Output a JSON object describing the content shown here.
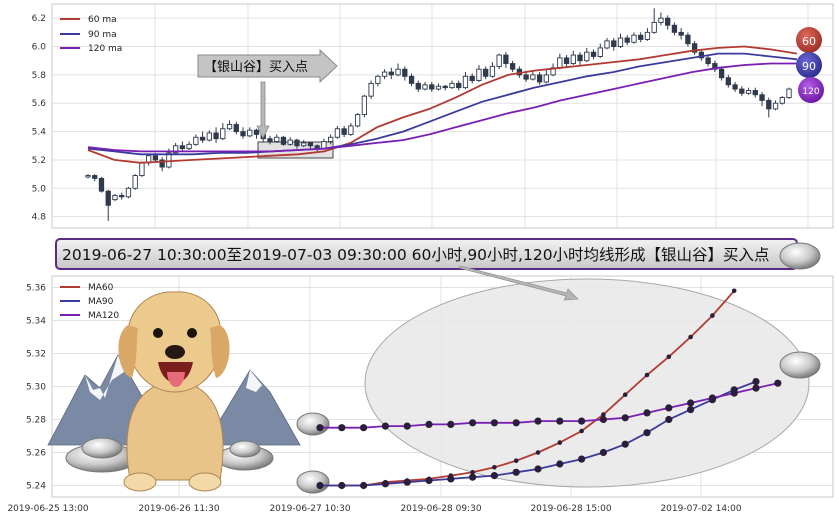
{
  "colors": {
    "ma60": "#b23a32",
    "ma90": "#3b3b9e",
    "ma120": "#7a1fb3",
    "candle": "#2f3a4c",
    "frame": "#c8c8c8",
    "grid": "#e1e1e1",
    "ellipse": "#e8e8e8"
  },
  "banner_text": "2019-06-27 10:30:00至2019-07-03 09:30:00 60小时,90小时,120小时均线形成【银山谷】买入点",
  "annotation_text": "【银山谷】买入点",
  "badges": [
    "60",
    "90",
    "120"
  ],
  "chart_data": [
    {
      "type": "candlestick",
      "title": "",
      "ylim": [
        4.72,
        6.3
      ],
      "yticks": [
        "4.8",
        "5.0",
        "5.2",
        "5.4",
        "5.6",
        "5.8",
        "6.0",
        "6.2"
      ],
      "legend": [
        "60 ma",
        "90 ma",
        "120 ma"
      ],
      "legend_position": "top-left",
      "grid": true,
      "candles": [
        [
          5.08,
          5.09,
          5.1,
          5.07
        ],
        [
          5.09,
          5.07,
          5.1,
          5.05
        ],
        [
          5.07,
          4.98,
          5.08,
          4.97
        ],
        [
          4.98,
          4.88,
          4.99,
          4.77
        ],
        [
          4.92,
          4.95,
          4.96,
          4.91
        ],
        [
          4.95,
          4.94,
          4.97,
          4.92
        ],
        [
          4.94,
          5.0,
          5.01,
          4.93
        ],
        [
          5.0,
          5.09,
          5.1,
          4.99
        ],
        [
          5.09,
          5.18,
          5.19,
          5.08
        ],
        [
          5.18,
          5.23,
          5.24,
          5.16
        ],
        [
          5.23,
          5.2,
          5.25,
          5.18
        ],
        [
          5.2,
          5.15,
          5.22,
          5.12
        ],
        [
          5.15,
          5.25,
          5.28,
          5.14
        ],
        [
          5.25,
          5.3,
          5.32,
          5.24
        ],
        [
          5.3,
          5.28,
          5.33,
          5.26
        ],
        [
          5.28,
          5.31,
          5.33,
          5.27
        ],
        [
          5.31,
          5.36,
          5.38,
          5.3
        ],
        [
          5.36,
          5.34,
          5.4,
          5.32
        ],
        [
          5.34,
          5.39,
          5.41,
          5.33
        ],
        [
          5.39,
          5.35,
          5.43,
          5.32
        ],
        [
          5.35,
          5.42,
          5.46,
          5.34
        ],
        [
          5.42,
          5.45,
          5.48,
          5.41
        ],
        [
          5.45,
          5.4,
          5.47,
          5.38
        ],
        [
          5.4,
          5.37,
          5.43,
          5.35
        ],
        [
          5.37,
          5.41,
          5.43,
          5.36
        ],
        [
          5.41,
          5.38,
          5.42,
          5.35
        ],
        [
          5.38,
          5.35,
          5.4,
          5.33
        ],
        [
          5.35,
          5.33,
          5.37,
          5.31
        ],
        [
          5.33,
          5.36,
          5.38,
          5.32
        ],
        [
          5.36,
          5.31,
          5.37,
          5.3
        ],
        [
          5.31,
          5.34,
          5.36,
          5.3
        ],
        [
          5.34,
          5.3,
          5.35,
          5.28
        ],
        [
          5.3,
          5.32,
          5.34,
          5.29
        ],
        [
          5.32,
          5.3,
          5.33,
          5.28
        ],
        [
          5.3,
          5.28,
          5.31,
          5.25
        ],
        [
          5.28,
          5.33,
          5.35,
          5.27
        ],
        [
          5.33,
          5.36,
          5.38,
          5.31
        ],
        [
          5.36,
          5.42,
          5.44,
          5.35
        ],
        [
          5.42,
          5.38,
          5.44,
          5.36
        ],
        [
          5.38,
          5.44,
          5.46,
          5.37
        ],
        [
          5.44,
          5.52,
          5.53,
          5.43
        ],
        [
          5.52,
          5.65,
          5.66,
          5.5
        ],
        [
          5.65,
          5.74,
          5.76,
          5.63
        ],
        [
          5.74,
          5.79,
          5.8,
          5.72
        ],
        [
          5.79,
          5.82,
          5.84,
          5.77
        ],
        [
          5.82,
          5.8,
          5.85,
          5.77
        ],
        [
          5.8,
          5.84,
          5.88,
          5.79
        ],
        [
          5.84,
          5.79,
          5.86,
          5.76
        ],
        [
          5.79,
          5.74,
          5.81,
          5.72
        ],
        [
          5.74,
          5.7,
          5.76,
          5.68
        ],
        [
          5.7,
          5.73,
          5.75,
          5.69
        ],
        [
          5.73,
          5.7,
          5.75,
          5.68
        ],
        [
          5.7,
          5.72,
          5.74,
          5.69
        ],
        [
          5.72,
          5.71,
          5.73,
          5.69
        ],
        [
          5.71,
          5.74,
          5.76,
          5.7
        ],
        [
          5.74,
          5.71,
          5.76,
          5.69
        ],
        [
          5.71,
          5.79,
          5.82,
          5.7
        ],
        [
          5.79,
          5.76,
          5.81,
          5.74
        ],
        [
          5.76,
          5.84,
          5.87,
          5.75
        ],
        [
          5.84,
          5.79,
          5.86,
          5.77
        ],
        [
          5.79,
          5.86,
          5.89,
          5.78
        ],
        [
          5.86,
          5.94,
          5.95,
          5.84
        ],
        [
          5.94,
          5.88,
          5.96,
          5.85
        ],
        [
          5.88,
          5.84,
          5.9,
          5.82
        ],
        [
          5.84,
          5.8,
          5.86,
          5.78
        ],
        [
          5.8,
          5.77,
          5.83,
          5.75
        ],
        [
          5.77,
          5.8,
          5.83,
          5.76
        ],
        [
          5.8,
          5.75,
          5.82,
          5.73
        ],
        [
          5.75,
          5.8,
          5.84,
          5.74
        ],
        [
          5.8,
          5.85,
          5.88,
          5.79
        ],
        [
          5.85,
          5.92,
          5.95,
          5.84
        ],
        [
          5.92,
          5.88,
          5.94,
          5.86
        ],
        [
          5.88,
          5.94,
          5.97,
          5.87
        ],
        [
          5.94,
          5.9,
          5.96,
          5.87
        ],
        [
          5.9,
          5.96,
          5.99,
          5.89
        ],
        [
          5.96,
          5.93,
          5.98,
          5.91
        ],
        [
          5.93,
          5.99,
          6.02,
          5.92
        ],
        [
          5.99,
          6.04,
          6.06,
          5.98
        ],
        [
          6.04,
          6.0,
          6.06,
          5.97
        ],
        [
          6.0,
          6.06,
          6.09,
          5.99
        ],
        [
          6.06,
          6.03,
          6.08,
          6.01
        ],
        [
          6.03,
          6.08,
          6.1,
          6.02
        ],
        [
          6.08,
          6.05,
          6.1,
          6.03
        ],
        [
          6.05,
          6.1,
          6.13,
          6.04
        ],
        [
          6.1,
          6.17,
          6.27,
          6.09
        ],
        [
          6.17,
          6.2,
          6.24,
          6.15
        ],
        [
          6.2,
          6.15,
          6.22,
          6.12
        ],
        [
          6.15,
          6.1,
          6.17,
          6.08
        ],
        [
          6.1,
          6.08,
          6.13,
          6.05
        ],
        [
          6.08,
          6.02,
          6.1,
          6.0
        ],
        [
          6.02,
          5.96,
          6.04,
          5.94
        ],
        [
          5.96,
          5.92,
          5.98,
          5.9
        ],
        [
          5.92,
          5.88,
          5.94,
          5.86
        ],
        [
          5.88,
          5.84,
          5.9,
          5.82
        ],
        [
          5.84,
          5.78,
          5.86,
          5.76
        ],
        [
          5.78,
          5.73,
          5.8,
          5.71
        ],
        [
          5.73,
          5.7,
          5.75,
          5.68
        ],
        [
          5.7,
          5.67,
          5.72,
          5.65
        ],
        [
          5.67,
          5.69,
          5.71,
          5.66
        ],
        [
          5.69,
          5.66,
          5.71,
          5.64
        ],
        [
          5.66,
          5.62,
          5.68,
          5.58
        ],
        [
          5.62,
          5.56,
          5.64,
          5.5
        ],
        [
          5.56,
          5.6,
          5.62,
          5.55
        ],
        [
          5.6,
          5.64,
          5.65,
          5.59
        ],
        [
          5.64,
          5.7,
          5.71,
          5.63
        ]
      ],
      "series": [
        {
          "name": "60 ma",
          "values": [
            5.27,
            5.2,
            5.18,
            5.19,
            5.2,
            5.21,
            5.22,
            5.23,
            5.24,
            5.26,
            5.32,
            5.43,
            5.5,
            5.56,
            5.64,
            5.73,
            5.8,
            5.83,
            5.85,
            5.87,
            5.89,
            5.91,
            5.94,
            5.97,
            5.99,
            6.0,
            5.98,
            5.95
          ]
        },
        {
          "name": "90 ma",
          "values": [
            5.28,
            5.26,
            5.24,
            5.24,
            5.24,
            5.25,
            5.25,
            5.26,
            5.27,
            5.28,
            5.31,
            5.35,
            5.4,
            5.47,
            5.54,
            5.61,
            5.66,
            5.71,
            5.75,
            5.79,
            5.82,
            5.86,
            5.89,
            5.92,
            5.95,
            5.95,
            5.93,
            5.91
          ]
        },
        {
          "name": "120 ma",
          "values": [
            5.29,
            5.27,
            5.26,
            5.26,
            5.26,
            5.26,
            5.26,
            5.26,
            5.27,
            5.28,
            5.3,
            5.32,
            5.34,
            5.38,
            5.43,
            5.48,
            5.53,
            5.57,
            5.62,
            5.66,
            5.7,
            5.74,
            5.78,
            5.82,
            5.85,
            5.87,
            5.88,
            5.88
          ]
        }
      ]
    },
    {
      "type": "line",
      "title": "",
      "ylim": [
        5.233,
        5.367
      ],
      "yticks": [
        "5.24",
        "5.26",
        "5.28",
        "5.30",
        "5.32",
        "5.34",
        "5.36"
      ],
      "x_tick_labels": [
        "2019-06-25 13:00",
        "2019-06-26 11:30",
        "2019-06-27 10:30",
        "2019-06-28 09:30",
        "2019-06-28 15:00",
        "2019-07-02 14:00"
      ],
      "legend": [
        "MA60",
        "MA90",
        "MA120"
      ],
      "legend_position": "top-left",
      "grid": true,
      "series": [
        {
          "name": "MA60",
          "values": [
            5.24,
            5.24,
            5.24,
            5.242,
            5.243,
            5.244,
            5.246,
            5.248,
            5.251,
            5.255,
            5.26,
            5.266,
            5.273,
            5.283,
            5.295,
            5.307,
            5.318,
            5.33,
            5.343,
            5.358
          ]
        },
        {
          "name": "MA90",
          "values": [
            5.24,
            5.24,
            5.24,
            5.241,
            5.242,
            5.243,
            5.244,
            5.245,
            5.246,
            5.248,
            5.25,
            5.253,
            5.256,
            5.26,
            5.265,
            5.272,
            5.28,
            5.286,
            5.292,
            5.298,
            5.303
          ]
        },
        {
          "name": "MA120",
          "values": [
            5.275,
            5.275,
            5.275,
            5.276,
            5.276,
            5.277,
            5.277,
            5.278,
            5.278,
            5.278,
            5.279,
            5.279,
            5.279,
            5.28,
            5.281,
            5.284,
            5.287,
            5.29,
            5.293,
            5.296,
            5.299,
            5.302
          ]
        }
      ]
    }
  ]
}
